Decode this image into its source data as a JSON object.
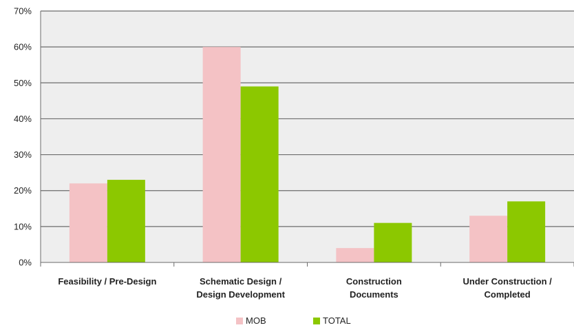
{
  "chart_data": {
    "type": "bar",
    "title": "",
    "xlabel": "",
    "ylabel": "",
    "categories": [
      [
        "Feasibility / Pre-Design"
      ],
      [
        "Schematic Design /",
        "Design Development"
      ],
      [
        "Construction",
        "Documents"
      ],
      [
        "Under Construction /",
        "Completed"
      ]
    ],
    "series": [
      {
        "name": "MOB",
        "values": [
          22,
          60,
          4,
          13
        ],
        "color": "#f4c2c5"
      },
      {
        "name": "TOTAL",
        "values": [
          23,
          49,
          11,
          17
        ],
        "color": "#8cc800"
      }
    ],
    "ylim": [
      0,
      70
    ],
    "y_ticks": [
      "0%",
      "10%",
      "20%",
      "30%",
      "40%",
      "50%",
      "60%",
      "70%"
    ],
    "grid": true,
    "legend_position": "bottom",
    "plot_background": "#eeeeee"
  }
}
